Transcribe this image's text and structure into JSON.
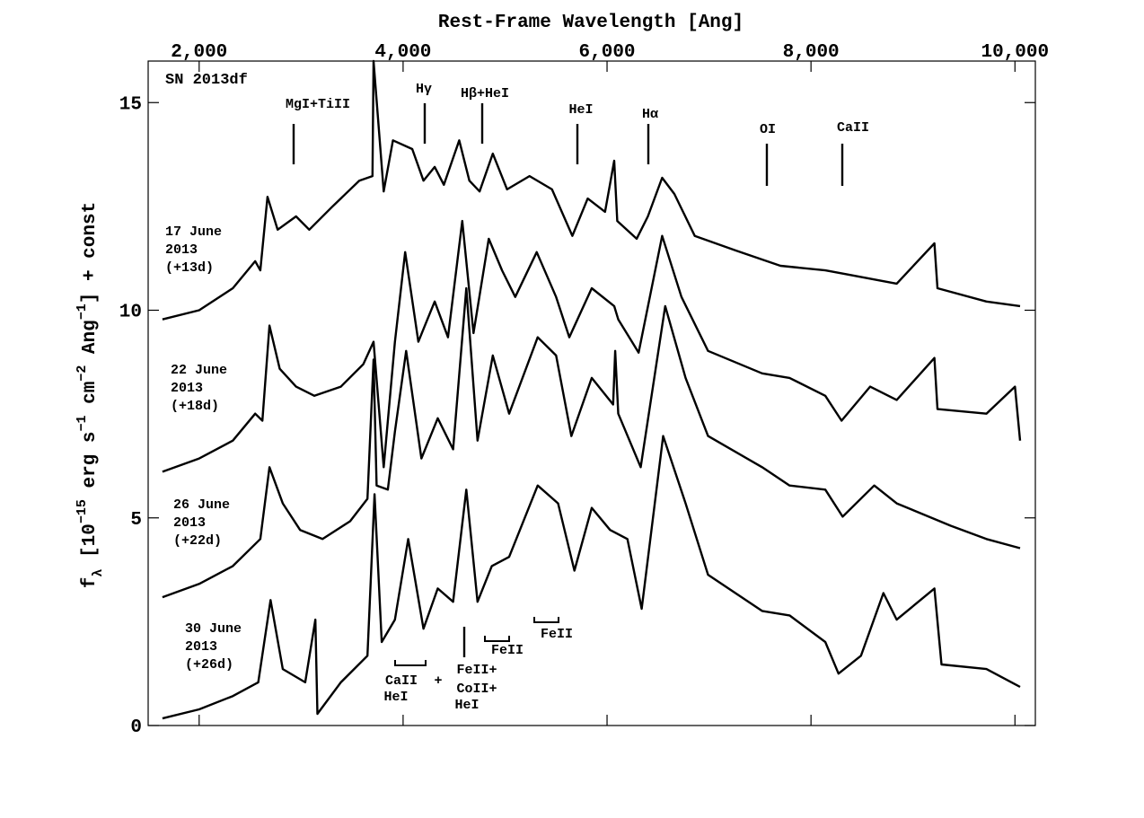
{
  "chart_data": {
    "type": "line",
    "title": "Rest-Frame Wavelength [Ang]",
    "y_label": [
      "f",
      "λ",
      " [10",
      "−15",
      " erg s",
      "−1",
      " cm",
      "−2",
      " Ang",
      "−1",
      "] + const"
    ],
    "object_label": "SN 2013df",
    "annotations": [
      "MgI+TiII",
      "Hγ",
      "Hβ+HeI",
      "HeI",
      "Hα",
      "OI",
      "CaII",
      "CaII",
      "HeI",
      "+",
      "FeII+",
      "CoII+",
      "HeI",
      "FeII",
      "FeII"
    ],
    "xlim": [
      1500,
      10200
    ],
    "ylim": [
      0,
      16
    ],
    "xticks": [
      {
        "value": 2000,
        "label": "2,000"
      },
      {
        "value": 4000,
        "label": "4,000"
      },
      {
        "value": 6000,
        "label": "6,000"
      },
      {
        "value": 8000,
        "label": "8,000"
      },
      {
        "value": 10000,
        "label": "10,000"
      }
    ],
    "yticks": [
      0,
      5,
      10,
      15
    ],
    "series": [
      {
        "name": "17 June 2013 (+13d)",
        "color": "#000000",
        "x": [
          1640,
          2000,
          2330,
          2550,
          2600,
          2670,
          2770,
          2950,
          3080,
          3300,
          3570,
          3700,
          3710,
          3810,
          3900,
          4090,
          4200,
          4310,
          4400,
          4550,
          4650,
          4750,
          4880,
          5020,
          5240,
          5460,
          5660,
          5810,
          5980,
          6070,
          6100,
          6290,
          6400,
          6540,
          6660,
          6860,
          7260,
          7700,
          8140,
          8360,
          8840,
          9210,
          9240,
          9720,
          10050
        ],
        "values": [
          9.78,
          10.0,
          10.53,
          11.18,
          10.96,
          12.73,
          11.94,
          12.26,
          11.94,
          12.48,
          13.12,
          13.23,
          16.0,
          12.86,
          14.09,
          13.88,
          13.12,
          13.45,
          13.02,
          14.09,
          13.12,
          12.86,
          13.77,
          12.91,
          13.23,
          12.91,
          11.79,
          12.69,
          12.37,
          13.6,
          12.15,
          11.72,
          12.26,
          13.19,
          12.8,
          11.79,
          11.44,
          11.07,
          10.96,
          10.86,
          10.64,
          11.61,
          10.53,
          10.21,
          10.1
        ]
      },
      {
        "name": "22 June 2013 (+18d)",
        "color": "#000000",
        "x": [
          1640,
          2000,
          2330,
          2550,
          2620,
          2690,
          2790,
          2950,
          3130,
          3390,
          3610,
          3710,
          3810,
          3920,
          4020,
          4150,
          4220,
          4310,
          4440,
          4580,
          4690,
          4840,
          4970,
          5100,
          5310,
          5500,
          5630,
          5850,
          6070,
          6110,
          6310,
          6540,
          6730,
          6990,
          7520,
          7790,
          8140,
          8300,
          8580,
          8840,
          9210,
          9240,
          9720,
          10000,
          10050
        ],
        "values": [
          6.11,
          6.43,
          6.86,
          7.51,
          7.34,
          9.63,
          8.59,
          8.16,
          7.94,
          8.16,
          8.7,
          9.24,
          6.22,
          9.24,
          11.4,
          9.24,
          9.67,
          10.21,
          9.35,
          12.15,
          9.45,
          11.72,
          10.96,
          10.32,
          11.4,
          10.32,
          9.35,
          10.53,
          10.1,
          9.78,
          8.98,
          11.79,
          10.32,
          9.02,
          8.48,
          8.37,
          7.94,
          7.34,
          8.16,
          7.84,
          8.85,
          7.62,
          7.51,
          8.16,
          6.86
        ]
      },
      {
        "name": "26 June 2013 (+22d)",
        "color": "#000000",
        "x": [
          1640,
          2000,
          2330,
          2600,
          2690,
          2820,
          2990,
          3210,
          3480,
          3650,
          3710,
          3740,
          3850,
          3920,
          4030,
          4180,
          4340,
          4490,
          4620,
          4730,
          4880,
          5040,
          5320,
          5500,
          5650,
          5850,
          6060,
          6080,
          6110,
          6330,
          6570,
          6770,
          6990,
          7520,
          7790,
          8140,
          8310,
          8620,
          8840,
          9370,
          9720,
          10050
        ],
        "values": [
          3.09,
          3.41,
          3.84,
          4.49,
          6.22,
          5.35,
          4.71,
          4.49,
          4.92,
          5.46,
          8.81,
          5.78,
          5.68,
          7.08,
          9.02,
          6.43,
          7.4,
          6.65,
          10.53,
          6.86,
          8.91,
          7.51,
          9.35,
          8.91,
          6.97,
          8.37,
          7.73,
          9.02,
          7.51,
          6.22,
          10.1,
          8.37,
          6.97,
          6.22,
          5.78,
          5.68,
          5.03,
          5.78,
          5.35,
          4.81,
          4.49,
          4.27
        ]
      },
      {
        "name": "30 June 2013 (+26d)",
        "color": "#000000",
        "x": [
          1640,
          2000,
          2330,
          2580,
          2700,
          2820,
          3040,
          3140,
          3160,
          3390,
          3650,
          3720,
          3790,
          3920,
          4050,
          4200,
          4340,
          4490,
          4620,
          4730,
          4870,
          5040,
          5320,
          5520,
          5680,
          5850,
          6030,
          6200,
          6340,
          6550,
          6770,
          6990,
          7520,
          7790,
          8140,
          8270,
          8490,
          8710,
          8840,
          9210,
          9280,
          9720,
          10050
        ],
        "values": [
          0.17,
          0.39,
          0.71,
          1.04,
          3.02,
          1.36,
          1.04,
          2.55,
          0.28,
          1.04,
          1.68,
          5.57,
          2.01,
          2.55,
          4.49,
          2.33,
          3.3,
          2.98,
          5.68,
          2.98,
          3.84,
          4.06,
          5.78,
          5.35,
          3.73,
          5.24,
          4.71,
          4.49,
          2.81,
          6.97,
          5.35,
          3.63,
          2.76,
          2.65,
          2.01,
          1.25,
          1.68,
          3.19,
          2.55,
          3.3,
          1.47,
          1.36,
          0.93
        ]
      }
    ]
  }
}
